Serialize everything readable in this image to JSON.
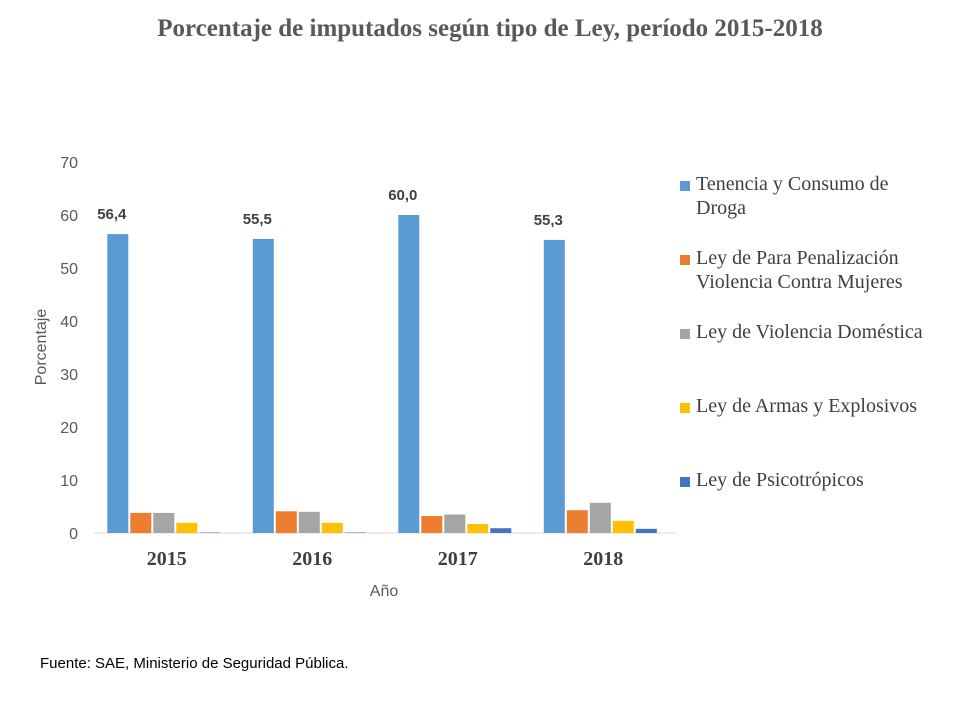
{
  "chart_data": {
    "type": "bar",
    "title": "Porcentaje de imputados según tipo de Ley, período 2015-2018",
    "xlabel": "Año",
    "ylabel": "Porcentaje",
    "ylim": [
      0,
      70
    ],
    "yticks": [
      0,
      10,
      20,
      30,
      40,
      50,
      60,
      70
    ],
    "categories": [
      "2015",
      "2016",
      "2017",
      "2018"
    ],
    "grid": false,
    "legend_position": "right",
    "series": [
      {
        "name": "Tenencia y Consumo de Droga",
        "color": "#5B9BD5",
        "values": [
          56.4,
          55.5,
          60.0,
          55.3
        ],
        "labels": [
          "56,4",
          "55,5",
          "60,0",
          "55,3"
        ]
      },
      {
        "name": "Ley de Para Penalización Violencia Contra Mujeres",
        "color": "#ED7D31",
        "values": [
          3.8,
          4.1,
          3.2,
          4.3
        ]
      },
      {
        "name": "Ley de Violencia Doméstica",
        "color": "#A5A5A5",
        "values": [
          3.8,
          4.0,
          3.5,
          5.7
        ]
      },
      {
        "name": "Ley de Armas y Explosivos",
        "color": "#FFC000",
        "values": [
          1.9,
          1.9,
          1.7,
          2.3
        ]
      },
      {
        "name": "Ley de Psicotrópicos",
        "color": "#4472C4",
        "values": [
          0.1,
          0.1,
          0.9,
          0.8
        ]
      }
    ]
  },
  "source_note": "Fuente: SAE, Ministerio de Seguridad Pública."
}
